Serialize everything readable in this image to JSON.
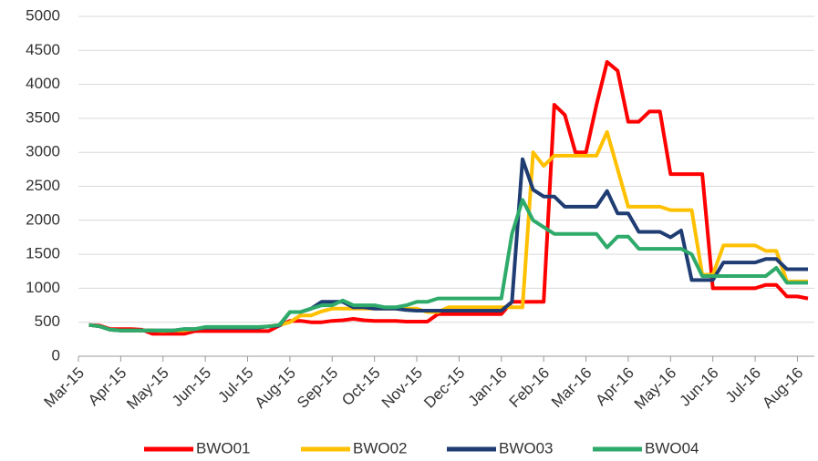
{
  "chart_data": {
    "type": "line",
    "x": [
      0.25,
      0.5,
      0.75,
      1.0,
      1.25,
      1.5,
      1.75,
      2.0,
      2.25,
      2.5,
      2.75,
      3.0,
      3.25,
      3.5,
      3.75,
      4.0,
      4.25,
      4.5,
      4.75,
      5.0,
      5.25,
      5.5,
      5.75,
      6.0,
      6.25,
      6.5,
      6.75,
      7.0,
      7.25,
      7.5,
      7.75,
      8.0,
      8.25,
      8.5,
      8.75,
      9.0,
      9.25,
      9.5,
      9.75,
      10.0,
      10.25,
      10.5,
      10.75,
      11.0,
      11.25,
      11.5,
      11.75,
      12.0,
      12.25,
      12.5,
      12.75,
      13.0,
      13.25,
      13.5,
      13.75,
      14.0,
      14.25,
      14.5,
      14.75,
      15.0,
      15.25,
      15.5,
      15.75,
      16.0,
      16.25,
      16.5,
      16.75,
      17.0,
      17.25
    ],
    "series": [
      {
        "name": "BWO01",
        "color": "#ff0000",
        "values": [
          460,
          450,
          400,
          400,
          400,
          390,
          330,
          330,
          330,
          330,
          370,
          370,
          370,
          370,
          370,
          370,
          370,
          370,
          450,
          520,
          520,
          500,
          500,
          520,
          530,
          550,
          530,
          520,
          520,
          520,
          510,
          510,
          510,
          620,
          620,
          620,
          620,
          620,
          620,
          620,
          800,
          800,
          800,
          800,
          3700,
          3550,
          3000,
          3000,
          3700,
          4330,
          4200,
          3450,
          3450,
          3600,
          3600,
          2680,
          2680,
          2680,
          2680,
          1000,
          1000,
          1000,
          1000,
          1000,
          1050,
          1050,
          880,
          880,
          850
        ]
      },
      {
        "name": "BWO02",
        "color": "#ffc000",
        "values": [
          460,
          440,
          390,
          380,
          380,
          380,
          380,
          370,
          380,
          380,
          400,
          420,
          420,
          420,
          420,
          420,
          420,
          440,
          460,
          500,
          600,
          600,
          660,
          700,
          700,
          700,
          700,
          700,
          700,
          700,
          700,
          700,
          650,
          650,
          720,
          720,
          720,
          720,
          720,
          720,
          720,
          720,
          3000,
          2800,
          2950,
          2950,
          2950,
          2950,
          2950,
          3300,
          2750,
          2200,
          2200,
          2200,
          2200,
          2150,
          2150,
          2150,
          1200,
          1200,
          1630,
          1630,
          1630,
          1630,
          1550,
          1550,
          1100,
          1100,
          1100
        ]
      },
      {
        "name": "BWO03",
        "color": "#1f3d73",
        "values": [
          460,
          440,
          390,
          380,
          380,
          380,
          380,
          380,
          380,
          400,
          400,
          420,
          420,
          420,
          420,
          420,
          420,
          440,
          450,
          650,
          650,
          700,
          800,
          800,
          800,
          720,
          720,
          700,
          700,
          700,
          680,
          670,
          670,
          670,
          670,
          670,
          670,
          670,
          670,
          670,
          800,
          2900,
          2450,
          2350,
          2350,
          2200,
          2200,
          2200,
          2200,
          2430,
          2100,
          2100,
          1830,
          1830,
          1830,
          1750,
          1850,
          1120,
          1120,
          1120,
          1380,
          1380,
          1380,
          1380,
          1430,
          1430,
          1280,
          1280,
          1280
        ]
      },
      {
        "name": "BWO04",
        "color": "#2eaa6a",
        "values": [
          460,
          440,
          390,
          380,
          380,
          380,
          380,
          380,
          380,
          400,
          400,
          430,
          430,
          430,
          430,
          430,
          430,
          440,
          460,
          650,
          650,
          700,
          750,
          750,
          820,
          750,
          750,
          750,
          720,
          720,
          750,
          800,
          800,
          850,
          850,
          850,
          850,
          850,
          850,
          850,
          1800,
          2300,
          2000,
          1900,
          1800,
          1800,
          1800,
          1800,
          1800,
          1600,
          1760,
          1760,
          1580,
          1580,
          1580,
          1580,
          1580,
          1500,
          1180,
          1180,
          1180,
          1180,
          1180,
          1180,
          1180,
          1300,
          1080,
          1080,
          1080
        ]
      }
    ],
    "xlim": [
      0,
      17.4
    ],
    "xticks": [
      {
        "value": 0,
        "label": "Mar-15"
      },
      {
        "value": 1,
        "label": "Apr-15"
      },
      {
        "value": 2,
        "label": "May-15"
      },
      {
        "value": 3,
        "label": "Jun-15"
      },
      {
        "value": 4,
        "label": "Jul-15"
      },
      {
        "value": 5,
        "label": "Aug-15"
      },
      {
        "value": 6,
        "label": "Sep-15"
      },
      {
        "value": 7,
        "label": "Oct-15"
      },
      {
        "value": 8,
        "label": "Nov-15"
      },
      {
        "value": 9,
        "label": "Dec-15"
      },
      {
        "value": 10,
        "label": "Jan-16"
      },
      {
        "value": 11,
        "label": "Feb-16"
      },
      {
        "value": 12,
        "label": "Mar-16"
      },
      {
        "value": 13,
        "label": "Apr-16"
      },
      {
        "value": 14,
        "label": "May-16"
      },
      {
        "value": 15,
        "label": "Jun-16"
      },
      {
        "value": 16,
        "label": "Jul-16"
      },
      {
        "value": 17,
        "label": "Aug-16"
      }
    ],
    "ylim": [
      0,
      5000
    ],
    "yticks": [
      0,
      500,
      1000,
      1500,
      2000,
      2500,
      3000,
      3500,
      4000,
      4500,
      5000
    ],
    "grid": true,
    "legend": "bottom"
  }
}
